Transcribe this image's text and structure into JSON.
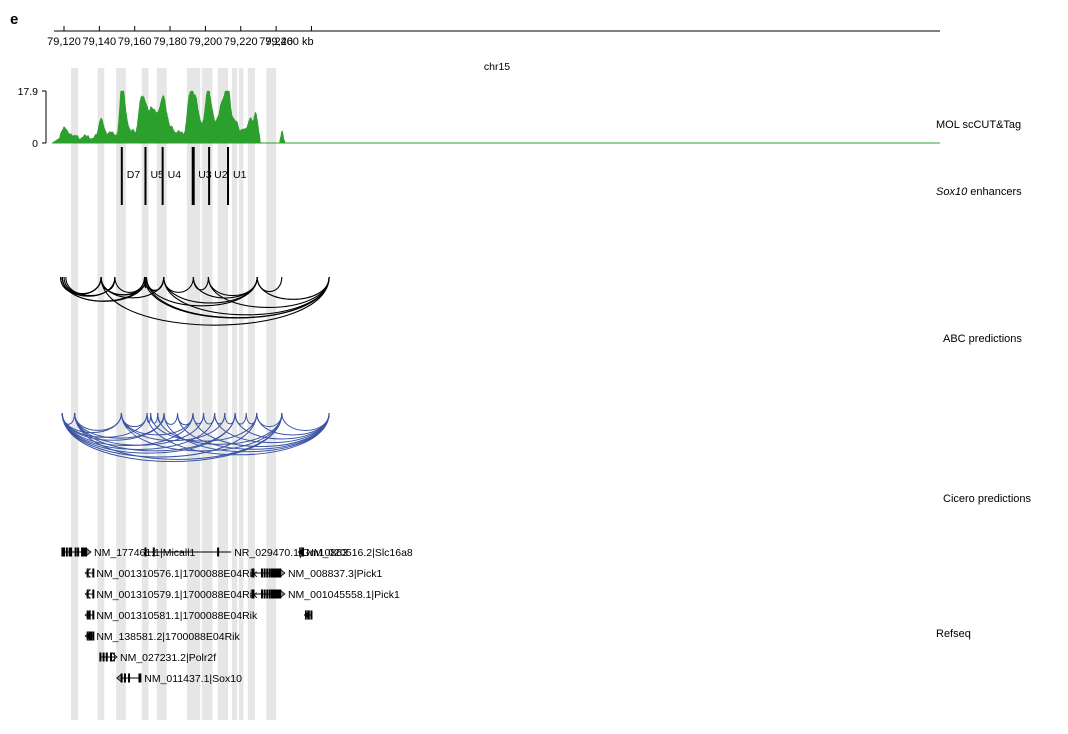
{
  "panel_letter": "e",
  "axis": {
    "chromosome": "chr15",
    "unit": "kb",
    "ticks": [
      {
        "pos": 79120,
        "label": "79,120"
      },
      {
        "pos": 79140,
        "label": "79,140"
      },
      {
        "pos": 79160,
        "label": "79,160"
      },
      {
        "pos": 79180,
        "label": "79,180"
      },
      {
        "pos": 79200,
        "label": "79,200"
      },
      {
        "pos": 79220,
        "label": "79,220"
      },
      {
        "pos": 79240,
        "label": "79,240"
      },
      {
        "pos": 79260,
        "label": "79,260"
      }
    ]
  },
  "highlights": [
    [
      79124.0,
      79128.0
    ],
    [
      79139.0,
      79142.8
    ],
    [
      79149.5,
      79155.0
    ],
    [
      79164.0,
      79167.8
    ],
    [
      79172.5,
      79178.1
    ],
    [
      79189.5,
      79197.1
    ],
    [
      79198.0,
      79204.0
    ],
    [
      79207.0,
      79212.8
    ],
    [
      79215.0,
      79218.0
    ],
    [
      79219.0,
      79221.5
    ],
    [
      79224.0,
      79228.0
    ],
    [
      79234.5,
      79240.0
    ]
  ],
  "tracks": {
    "signal": {
      "label": "MOL scCUT&Tag",
      "ymax_label": "17.9",
      "ymin_label": "0",
      "ymax": 17.9,
      "color": "#2ca02c",
      "peaks": [
        {
          "c": 79119.2,
          "h": 2.4,
          "w": 1.6
        },
        {
          "c": 79121.0,
          "h": 3.2,
          "w": 1.5
        },
        {
          "c": 79124.4,
          "h": 1.7,
          "w": 1.3
        },
        {
          "c": 79127.0,
          "h": 1.6,
          "w": 1.2
        },
        {
          "c": 79131.0,
          "h": 1.8,
          "w": 1.4
        },
        {
          "c": 79134.0,
          "h": 1.5,
          "w": 1.2
        },
        {
          "c": 79137.7,
          "h": 1.6,
          "w": 1.2
        },
        {
          "c": 79140.6,
          "h": 6.5,
          "w": 1.2
        },
        {
          "c": 79142.6,
          "h": 3.6,
          "w": 1.2
        },
        {
          "c": 79146.0,
          "h": 2.6,
          "w": 1.4
        },
        {
          "c": 79148.2,
          "h": 2.0,
          "w": 1.1
        },
        {
          "c": 79152.5,
          "h": 15.8,
          "w": 1.2
        },
        {
          "c": 79154.0,
          "h": 9.0,
          "w": 1.2
        },
        {
          "c": 79156.2,
          "h": 4.3,
          "w": 1.1
        },
        {
          "c": 79159.0,
          "h": 3.5,
          "w": 1.2
        },
        {
          "c": 79162.8,
          "h": 9.6,
          "w": 1.2
        },
        {
          "c": 79164.9,
          "h": 11.8,
          "w": 1.3
        },
        {
          "c": 79166.9,
          "h": 7.4,
          "w": 1.1
        },
        {
          "c": 79169.4,
          "h": 10.2,
          "w": 1.2
        },
        {
          "c": 79171.7,
          "h": 8.0,
          "w": 1.1
        },
        {
          "c": 79174.1,
          "h": 8.6,
          "w": 1.1
        },
        {
          "c": 79176.3,
          "h": 13.8,
          "w": 1.2
        },
        {
          "c": 79178.6,
          "h": 6.0,
          "w": 1.1
        },
        {
          "c": 79181.2,
          "h": 4.3,
          "w": 1.2
        },
        {
          "c": 79184.4,
          "h": 3.2,
          "w": 1.1
        },
        {
          "c": 79186.8,
          "h": 2.4,
          "w": 1.1
        },
        {
          "c": 79190.4,
          "h": 11.3,
          "w": 1.2
        },
        {
          "c": 79192.5,
          "h": 13.2,
          "w": 1.2
        },
        {
          "c": 79194.8,
          "h": 12.0,
          "w": 1.2
        },
        {
          "c": 79197.3,
          "h": 5.6,
          "w": 1.2
        },
        {
          "c": 79200.2,
          "h": 9.5,
          "w": 1.1
        },
        {
          "c": 79201.9,
          "h": 13.4,
          "w": 1.1
        },
        {
          "c": 79204.0,
          "h": 8.2,
          "w": 1.2
        },
        {
          "c": 79206.8,
          "h": 6.3,
          "w": 1.1
        },
        {
          "c": 79209.0,
          "h": 9.8,
          "w": 1.1
        },
        {
          "c": 79211.4,
          "h": 14.0,
          "w": 1.3
        },
        {
          "c": 79213.2,
          "h": 13.2,
          "w": 1.1
        },
        {
          "c": 79215.6,
          "h": 6.4,
          "w": 1.1
        },
        {
          "c": 79217.9,
          "h": 5.6,
          "w": 1.1
        },
        {
          "c": 79220.8,
          "h": 3.6,
          "w": 1.1
        },
        {
          "c": 79223.2,
          "h": 3.3,
          "w": 1.1
        },
        {
          "c": 79225.4,
          "h": 7.2,
          "w": 1.1
        },
        {
          "c": 79228.5,
          "h": 9.8,
          "w": 1.2
        },
        {
          "c": 79243.3,
          "h": 3.4,
          "w": 0.7
        }
      ]
    },
    "enhancers": {
      "label_italic": "Sox10",
      "label_rest": " enhancers",
      "items": [
        {
          "name": "D7",
          "pos": 79152.7
        },
        {
          "name": "U5",
          "pos": 79166.1
        },
        {
          "name": "U4",
          "pos": 79175.8
        },
        {
          "name": "U3",
          "pos": 79193.1
        },
        {
          "name": "U2",
          "pos": 79202.1
        },
        {
          "name": "U1",
          "pos": 79212.8
        }
      ]
    },
    "abc": {
      "label": "ABC predictions",
      "color": "#000000",
      "arcs": [
        [
          79119,
          79141.0
        ],
        [
          79120,
          79141.0
        ],
        [
          79118,
          79141.0
        ],
        [
          79141.0,
          79148.8
        ],
        [
          79119,
          79148.8
        ],
        [
          79121,
          79148.8
        ],
        [
          79141.0,
          79165.6
        ],
        [
          79148.8,
          79165.6
        ],
        [
          79119,
          79165.6
        ],
        [
          79165.6,
          79166.6
        ],
        [
          79141.0,
          79166.6
        ],
        [
          79119,
          79166.6
        ],
        [
          79166.6,
          79176.4
        ],
        [
          79165.6,
          79176.4
        ],
        [
          79141.0,
          79176.4
        ],
        [
          79176.4,
          79193.2
        ],
        [
          79193.2,
          79201.7
        ],
        [
          79201.7,
          79229.3
        ],
        [
          79193.2,
          79229.3
        ],
        [
          79176.4,
          79229.3
        ],
        [
          79166.6,
          79229.3
        ],
        [
          79229.3,
          79243.2
        ],
        [
          79166.6,
          79270
        ],
        [
          79165.6,
          79270
        ],
        [
          79141.0,
          79270
        ],
        [
          79176.4,
          79270
        ],
        [
          79201.7,
          79270
        ],
        [
          79229.3,
          79270
        ]
      ]
    },
    "cicero": {
      "label": "Cicero predictions",
      "color": "#3a55a4",
      "arcs": [
        [
          79119,
          79126.0
        ],
        [
          79126.0,
          79152.5
        ],
        [
          79119,
          79152.5
        ],
        [
          79152.5,
          79167.0
        ],
        [
          79167.0,
          79169.0
        ],
        [
          79169.0,
          79173.0
        ],
        [
          79173.0,
          79176.6
        ],
        [
          79176.6,
          79184.2
        ],
        [
          79184.2,
          79193.0
        ],
        [
          79193.0,
          79199.0
        ],
        [
          79199.0,
          79205.2
        ],
        [
          79205.2,
          79211.0
        ],
        [
          79211.0,
          79216.8
        ],
        [
          79216.8,
          79223.1
        ],
        [
          79223.1,
          79229.0
        ],
        [
          79229.0,
          79243.3
        ],
        [
          79119,
          79167.0
        ],
        [
          79119,
          79176.6
        ],
        [
          79119,
          79193.0
        ],
        [
          79119,
          79205.2
        ],
        [
          79119,
          79216.8
        ],
        [
          79119,
          79229.0
        ],
        [
          79119,
          79243.3
        ],
        [
          79126.0,
          79176.6
        ],
        [
          79126.0,
          79199.0
        ],
        [
          79126.0,
          79216.8
        ],
        [
          79126.0,
          79243.3
        ],
        [
          79152.5,
          79193.0
        ],
        [
          79152.5,
          79211.0
        ],
        [
          79152.5,
          79243.3
        ],
        [
          79169.0,
          79229.0
        ],
        [
          79173.0,
          79243.3
        ],
        [
          79184.2,
          79270
        ],
        [
          79193.0,
          79270
        ],
        [
          79205.2,
          79270
        ],
        [
          79216.8,
          79270
        ],
        [
          79229.0,
          79270
        ],
        [
          79243.3,
          79270
        ],
        [
          79176.6,
          79270
        ],
        [
          79167.0,
          79270
        ]
      ]
    }
  },
  "genes": [
    {
      "row": 0,
      "start": 79119.0,
      "end": 79135.3,
      "strand": "+",
      "exons": [
        79119.1,
        79120.0,
        79121.6,
        79123.2,
        79124.0,
        79126.6,
        79128.0,
        79130.2,
        79131.0,
        79131.6,
        79132.3
      ],
      "utr": [
        [
          79132.8,
          79135.3
        ]
      ],
      "label": "NM_177461.1|Micall1"
    },
    {
      "row": 0,
      "start": 79166.0,
      "end": 79214.6,
      "strand": "+",
      "exons": [
        79166.1,
        79170.8,
        79207.2
      ],
      "utr": [],
      "label": "NR_029470.1|Gm10863"
    },
    {
      "row": 0,
      "start": 79252.6,
      "end": 79255.3,
      "strand": "-",
      "exons": [
        79253.6,
        79254.0,
        79254.4,
        79254.8,
        79255.2
      ],
      "utr": [
        [
          79252.6,
          79253.4
        ]
      ],
      "label": "NM_020516.2|Slc16a8"
    },
    {
      "row": 1,
      "start": 79132.0,
      "end": 79136.6,
      "strand": "-",
      "exons": [
        79133.4,
        79136.6
      ],
      "utr": [
        [
          79132.0,
          79133.2
        ]
      ],
      "label": "NM_001310576.1|1700088E04Rik"
    },
    {
      "row": 1,
      "start": 79226.5,
      "end": 79245.0,
      "strand": "+",
      "exons": [
        79226.6,
        79227.2,
        79232.0,
        79233.5,
        79235.0,
        79236.4,
        79237.6,
        79238.2,
        79238.8,
        79239.4,
        79240.0,
        79240.6,
        79241.2,
        79241.8,
        79242.4
      ],
      "utr": [
        [
          79242.6,
          79245.0
        ]
      ],
      "label": "NM_008837.3|Pick1"
    },
    {
      "row": 2,
      "start": 79132.0,
      "end": 79136.6,
      "strand": "-",
      "exons": [
        79133.4,
        79136.6
      ],
      "utr": [
        [
          79132.0,
          79133.2
        ]
      ],
      "label": "NM_001310579.1|1700088E04Rik"
    },
    {
      "row": 2,
      "start": 79226.5,
      "end": 79245.0,
      "strand": "+",
      "exons": [
        79226.6,
        79227.2,
        79232.0,
        79233.5,
        79235.0,
        79236.4,
        79237.6,
        79238.2,
        79238.8,
        79239.4,
        79240.0,
        79240.6,
        79241.2,
        79241.8,
        79242.4
      ],
      "utr": [
        [
          79242.6,
          79245.0
        ]
      ],
      "label": "NM_001045558.1|Pick1"
    },
    {
      "row": 3,
      "start": 79132.0,
      "end": 79136.6,
      "strand": "-",
      "exons": [
        79133.4,
        79134.5,
        79136.6
      ],
      "utr": [
        [
          79132.0,
          79133.2
        ]
      ],
      "label": "NM_001310581.1|1700088E04Rik"
    },
    {
      "row": 3,
      "start": 79256.0,
      "end": 79260.0,
      "strand": "-",
      "exons": [
        79256.9,
        79257.3,
        79257.7,
        79258.1,
        79258.5,
        79260.0
      ],
      "utr": [
        [
          79256.0,
          79256.8
        ]
      ],
      "label": ""
    },
    {
      "row": 4,
      "start": 79132.0,
      "end": 79136.6,
      "strand": "-",
      "exons": [
        79133.4,
        79134.4,
        79135.4,
        79136.6
      ],
      "utr": [
        [
          79132.0,
          79133.2
        ]
      ],
      "label": "NM_138581.2|1700088E04Rik"
    },
    {
      "row": 5,
      "start": 79140.5,
      "end": 79150.0,
      "strand": "+",
      "exons": [
        79140.6,
        79142.4,
        79144.2,
        79146.6
      ],
      "utr": [
        [
          79148.6,
          79150.0
        ]
      ],
      "label": "NM_027231.2|Polr2f"
    },
    {
      "row": 6,
      "start": 79149.8,
      "end": 79163.7,
      "strand": "-",
      "exons": [
        79152.6,
        79154.5,
        79156.8,
        79162.7,
        79163.2
      ],
      "utr": [
        [
          79149.8,
          79152.3
        ]
      ],
      "label": "NM_011437.1|Sox10"
    }
  ],
  "refseq_label": "Refseq"
}
